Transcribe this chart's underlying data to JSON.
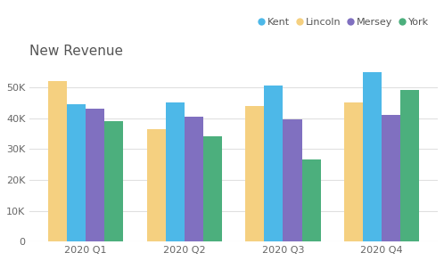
{
  "title": "New Revenue",
  "categories": [
    "2020 Q1",
    "2020 Q2",
    "2020 Q3",
    "2020 Q4"
  ],
  "series_order": [
    "Lincoln",
    "Kent",
    "Mersey",
    "York"
  ],
  "series": {
    "Kent": [
      44500,
      45000,
      50500,
      55000
    ],
    "Lincoln": [
      52000,
      36500,
      44000,
      45000
    ],
    "Mersey": [
      43000,
      40500,
      39500,
      41000
    ],
    "York": [
      39000,
      34000,
      26500,
      49000
    ]
  },
  "colors": {
    "Kent": "#4db8e8",
    "Lincoln": "#f5d080",
    "Mersey": "#8070c0",
    "York": "#4caf7d"
  },
  "legend_order": [
    "Kent",
    "Lincoln",
    "Mersey",
    "York"
  ],
  "ylim": [
    0,
    57000
  ],
  "yticks": [
    0,
    10000,
    20000,
    30000,
    40000,
    50000
  ],
  "background_color": "#ffffff",
  "grid_color": "#e0e0e0",
  "title_fontsize": 11,
  "title_color": "#555555",
  "legend_fontsize": 8,
  "tick_fontsize": 8
}
